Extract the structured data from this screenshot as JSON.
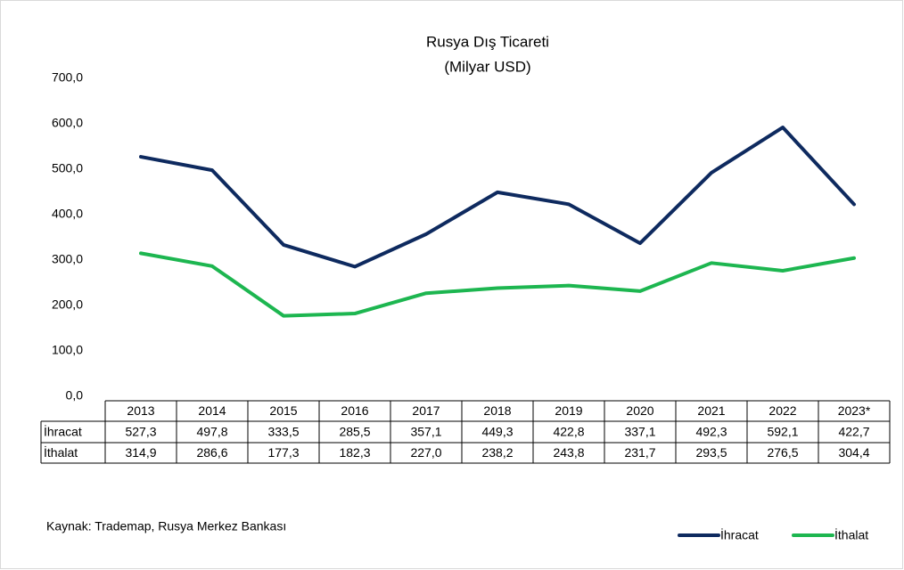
{
  "chart_data": {
    "type": "line",
    "title": "Rusya Dış Ticareti",
    "subtitle": "(Milyar USD)",
    "source": "Kaynak: Trademap, Rusya Merkez Bankası",
    "categories": [
      "2013",
      "2014",
      "2015",
      "2016",
      "2017",
      "2018",
      "2019",
      "2020",
      "2021",
      "2022",
      "2023*"
    ],
    "series": [
      {
        "name": "İhracat",
        "color": "#0e2a5f",
        "values": [
          527.3,
          497.8,
          333.5,
          285.5,
          357.1,
          449.3,
          422.8,
          337.1,
          492.3,
          592.1,
          422.7
        ],
        "value_labels": [
          "527,3",
          "497,8",
          "333,5",
          "285,5",
          "357,1",
          "449,3",
          "422,8",
          "337,1",
          "492,3",
          "592,1",
          "422,7"
        ]
      },
      {
        "name": "İthalat",
        "color": "#1db650",
        "values": [
          314.9,
          286.6,
          177.3,
          182.3,
          227.0,
          238.2,
          243.8,
          231.7,
          293.5,
          276.5,
          304.4
        ],
        "value_labels": [
          "314,9",
          "286,6",
          "177,3",
          "182,3",
          "227,0",
          "238,2",
          "243,8",
          "231,7",
          "293,5",
          "276,5",
          "304,4"
        ]
      }
    ],
    "ylim": [
      0,
      700
    ],
    "yticks": [
      {
        "value": 0,
        "label": "0,0"
      },
      {
        "value": 100,
        "label": "100,0"
      },
      {
        "value": 200,
        "label": "200,0"
      },
      {
        "value": 300,
        "label": "300,0"
      },
      {
        "value": 400,
        "label": "400,0"
      },
      {
        "value": 500,
        "label": "500,0"
      },
      {
        "value": 600,
        "label": "600,0"
      },
      {
        "value": 700,
        "label": "700,0"
      }
    ],
    "grid": false,
    "legend": "bottom-right"
  }
}
